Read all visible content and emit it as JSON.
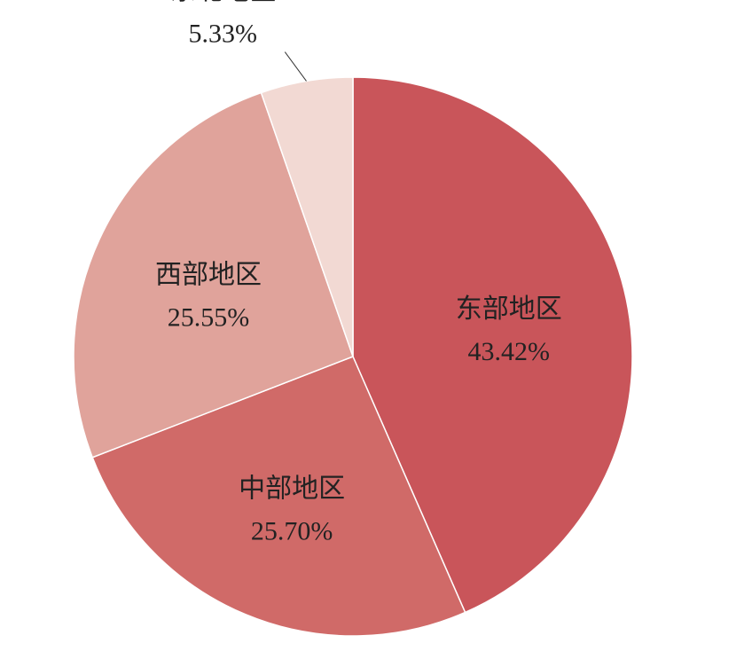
{
  "chart_data": {
    "type": "pie",
    "categories": [
      "东部地区",
      "中部地区",
      "西部地区",
      "东北地区"
    ],
    "values": [
      43.42,
      25.7,
      25.55,
      5.33
    ],
    "value_labels": [
      "43.42%",
      "25.70%",
      "25.55%",
      "5.33%"
    ],
    "colors": [
      "#c9555a",
      "#d06a68",
      "#e0a39b",
      "#f2d9d3"
    ]
  }
}
